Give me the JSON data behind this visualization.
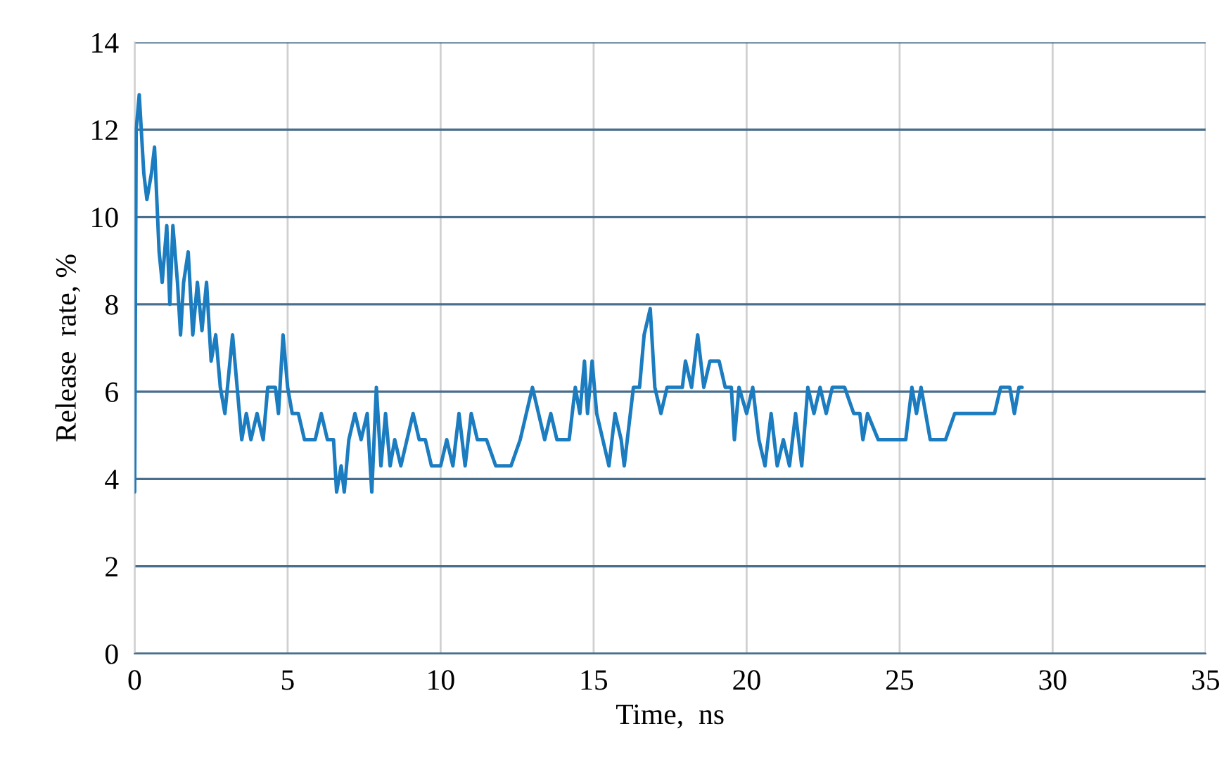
{
  "chart_data": {
    "type": "line",
    "xlabel": "Time,  ns",
    "ylabel": "Release  rate, %",
    "xlim": [
      0,
      35
    ],
    "xticks": [
      0,
      5,
      10,
      15,
      20,
      25,
      30,
      35
    ],
    "ylim": [
      0,
      14
    ],
    "yticks": [
      0,
      2,
      4,
      6,
      8,
      10,
      12,
      14
    ],
    "grid": true,
    "marker": "none",
    "line_style": "solid",
    "series": [
      {
        "color": "#1b7cc0",
        "x": [
          0,
          0.05,
          0.15,
          0.3,
          0.4,
          0.55,
          0.65,
          0.8,
          0.9,
          1.05,
          1.15,
          1.25,
          1.4,
          1.5,
          1.6,
          1.75,
          1.9,
          2.05,
          2.2,
          2.35,
          2.5,
          2.65,
          2.8,
          2.95,
          3.2,
          3.35,
          3.5,
          3.65,
          3.8,
          4.0,
          4.2,
          4.35,
          4.6,
          4.7,
          4.85,
          5.0,
          5.15,
          5.35,
          5.55,
          5.9,
          6.1,
          6.3,
          6.5,
          6.6,
          6.75,
          6.85,
          7.0,
          7.2,
          7.4,
          7.6,
          7.75,
          7.9,
          8.05,
          8.2,
          8.35,
          8.5,
          8.7,
          8.9,
          9.1,
          9.3,
          9.5,
          9.7,
          10.0,
          10.2,
          10.4,
          10.6,
          10.8,
          11.0,
          11.2,
          11.5,
          11.8,
          12.3,
          12.6,
          12.8,
          13.0,
          13.2,
          13.4,
          13.6,
          13.8,
          14.2,
          14.4,
          14.55,
          14.7,
          14.8,
          14.95,
          15.1,
          15.3,
          15.5,
          15.7,
          15.9,
          16.0,
          16.3,
          16.5,
          16.65,
          16.85,
          17.0,
          17.2,
          17.4,
          17.9,
          18.0,
          18.2,
          18.4,
          18.6,
          18.8,
          19.1,
          19.3,
          19.5,
          19.6,
          19.75,
          20.0,
          20.2,
          20.4,
          20.6,
          20.8,
          21.0,
          21.2,
          21.4,
          21.6,
          21.8,
          22.0,
          22.2,
          22.4,
          22.6,
          22.8,
          23.2,
          23.5,
          23.7,
          23.8,
          23.95,
          24.3,
          25.2,
          25.4,
          25.55,
          25.7,
          26.0,
          26.5,
          26.8,
          28.1,
          28.3,
          28.6,
          28.75,
          28.9,
          29.0
        ],
        "values": [
          3.7,
          12.0,
          12.8,
          11.0,
          10.4,
          11.0,
          11.6,
          9.2,
          8.5,
          9.8,
          8.0,
          9.8,
          8.5,
          7.3,
          8.5,
          9.2,
          7.3,
          8.5,
          7.4,
          8.5,
          6.7,
          7.3,
          6.1,
          5.5,
          7.3,
          6.1,
          4.9,
          5.5,
          4.9,
          5.5,
          4.9,
          6.1,
          6.1,
          5.5,
          7.3,
          6.1,
          5.5,
          5.5,
          4.9,
          4.9,
          5.5,
          4.9,
          4.9,
          3.7,
          4.3,
          3.7,
          4.9,
          5.5,
          4.9,
          5.5,
          3.7,
          6.1,
          4.3,
          5.5,
          4.3,
          4.9,
          4.3,
          4.9,
          5.5,
          4.9,
          4.9,
          4.3,
          4.3,
          4.9,
          4.3,
          5.5,
          4.3,
          5.5,
          4.9,
          4.9,
          4.3,
          4.3,
          4.9,
          5.5,
          6.1,
          5.5,
          4.9,
          5.5,
          4.9,
          4.9,
          6.1,
          5.5,
          6.7,
          5.5,
          6.7,
          5.5,
          4.9,
          4.3,
          5.5,
          4.9,
          4.3,
          6.1,
          6.1,
          7.3,
          7.9,
          6.1,
          5.5,
          6.1,
          6.1,
          6.7,
          6.1,
          7.3,
          6.1,
          6.7,
          6.7,
          6.1,
          6.1,
          4.9,
          6.1,
          5.5,
          6.1,
          4.9,
          4.3,
          5.5,
          4.3,
          4.9,
          4.3,
          5.5,
          4.3,
          6.1,
          5.5,
          6.1,
          5.5,
          6.1,
          6.1,
          5.5,
          5.5,
          4.9,
          5.5,
          4.9,
          4.9,
          6.1,
          5.5,
          6.1,
          4.9,
          4.9,
          5.5,
          5.5,
          6.1,
          6.1,
          5.5,
          6.1,
          6.1
        ]
      }
    ]
  }
}
